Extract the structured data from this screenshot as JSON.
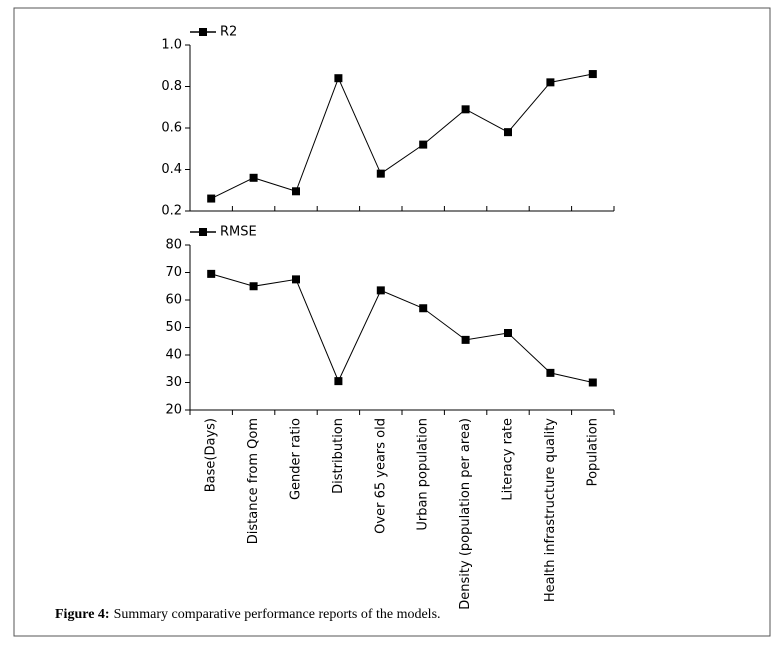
{
  "chart_data": [
    {
      "type": "line",
      "series": [
        {
          "name": "R2",
          "color": "#000000",
          "values": [
            0.26,
            0.36,
            0.295,
            0.84,
            0.38,
            0.52,
            0.69,
            0.58,
            0.82,
            0.86
          ]
        }
      ],
      "ylim": [
        0.2,
        1.0
      ],
      "yticks": [
        0.2,
        0.4,
        0.6,
        0.8,
        {
          "value": 1,
          "label": "1.0"
        }
      ]
    },
    {
      "type": "line",
      "categories": [
        "Base(Days)",
        "Distance from Qom",
        "Gender ratio",
        "Distribution",
        "Over 65 years old",
        "Urban population",
        "Density (population per area)",
        "Literacy rate",
        "Health infrastructure quality",
        "Population"
      ],
      "series": [
        {
          "name": "RMSE",
          "color": "#000000",
          "values": [
            69.5,
            65,
            67.5,
            30.5,
            63.5,
            57,
            45.5,
            48,
            33.5,
            30
          ]
        }
      ],
      "ylim": [
        20,
        80
      ],
      "yticks": [
        20,
        30,
        40,
        50,
        60,
        70,
        80
      ]
    }
  ],
  "caption": {
    "label": "Figure 4:",
    "text": "Summary comparative performance reports of the models."
  }
}
